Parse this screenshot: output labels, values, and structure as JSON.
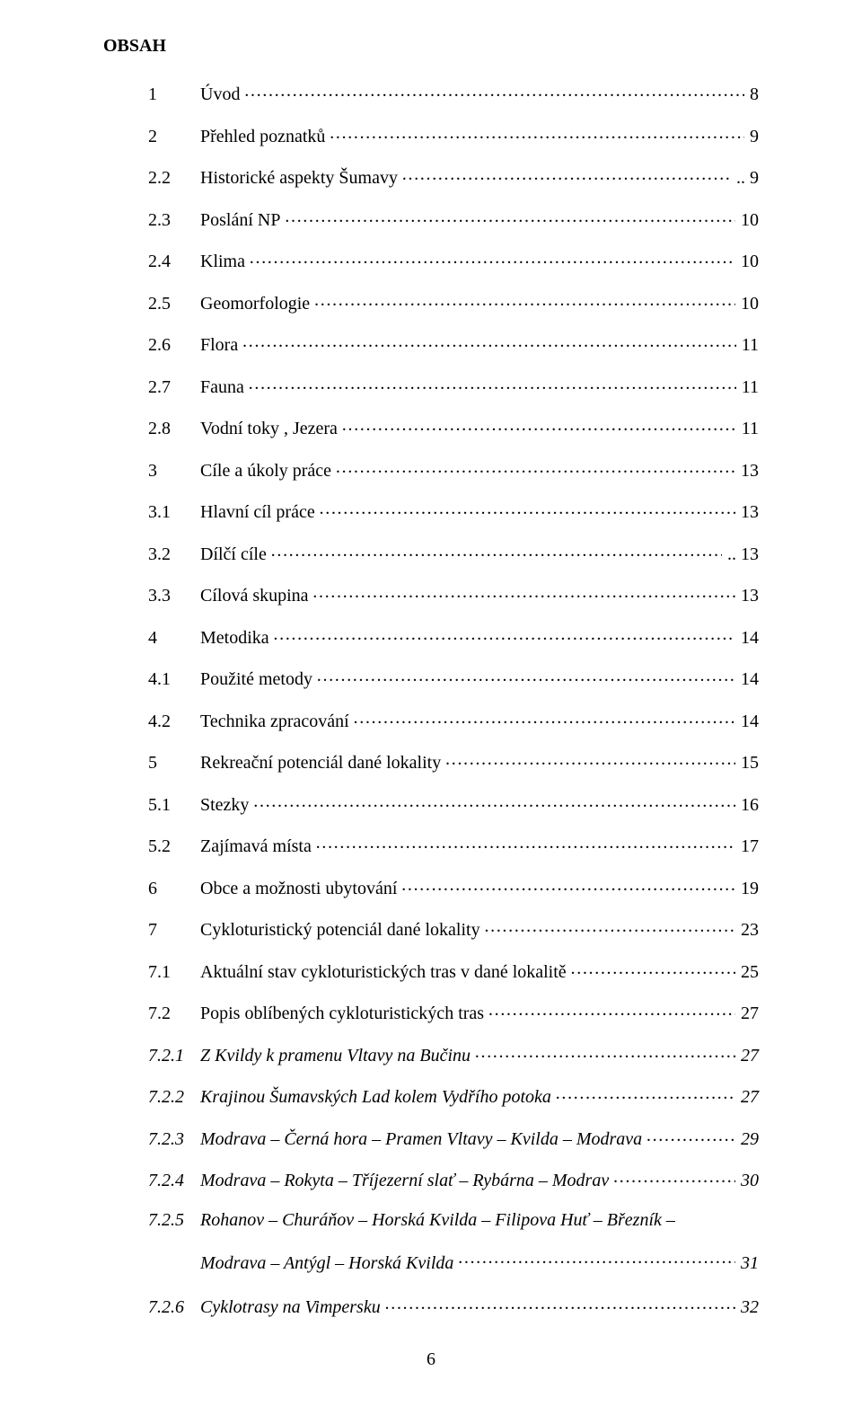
{
  "title": "OBSAH",
  "footer_page_number": "6",
  "entries": [
    {
      "num": "1",
      "label": "Úvod",
      "page": "8",
      "italic": false
    },
    {
      "num": "2",
      "label": "Přehled poznatků",
      "page": "9",
      "italic": false
    },
    {
      "num": "2.2",
      "label": "Historické aspekty Šumavy",
      "page": "9",
      "italic": false,
      "page_prefix": ".."
    },
    {
      "num": "2.3",
      "label": "Poslání NP",
      "page": "10",
      "italic": false
    },
    {
      "num": "2.4",
      "label": "Klima",
      "page": "10",
      "italic": false
    },
    {
      "num": "2.5",
      "label": "Geomorfologie",
      "page": "10",
      "italic": false
    },
    {
      "num": "2.6",
      "label": "Flora",
      "page": "11",
      "italic": false
    },
    {
      "num": "2.7",
      "label": "Fauna",
      "page": "11",
      "italic": false
    },
    {
      "num": "2.8",
      "label": "Vodní toky , Jezera",
      "page": "11",
      "italic": false
    },
    {
      "num": "3",
      "label": "Cíle a úkoly práce",
      "page": "13",
      "italic": false
    },
    {
      "num": "3.1",
      "label": "Hlavní cíl práce",
      "page": "13",
      "italic": false
    },
    {
      "num": "3.2",
      "label": "Dílčí cíle",
      "page": "13",
      "italic": false,
      "page_prefix": ".."
    },
    {
      "num": "3.3",
      "label": "Cílová skupina",
      "page": "13",
      "italic": false
    },
    {
      "num": "4",
      "label": "Metodika",
      "page": "14",
      "italic": false
    },
    {
      "num": "4.1",
      "label": "Použité metody",
      "page": "14",
      "italic": false
    },
    {
      "num": "4.2",
      "label": "Technika zpracování",
      "page": "14",
      "italic": false
    },
    {
      "num": "5",
      "label": "Rekreační potenciál dané lokality",
      "page": "15",
      "italic": false
    },
    {
      "num": "5.1",
      "label": "Stezky",
      "page": "16",
      "italic": false
    },
    {
      "num": "5.2",
      "label": "Zajímavá místa",
      "page": "17",
      "italic": false
    },
    {
      "num": "6",
      "label": "Obce a možnosti ubytování",
      "page": "19",
      "italic": false
    },
    {
      "num": "7",
      "label": "Cykloturistický potenciál dané lokality",
      "page": "23",
      "italic": false
    },
    {
      "num": "7.1",
      "label": "Aktuální stav cykloturistických tras v dané lokalitě",
      "page": "25",
      "italic": false
    },
    {
      "num": "7.2",
      "label": "Popis oblíbených cykloturistických tras",
      "page": "27",
      "italic": false
    },
    {
      "num": "7.2.1",
      "label": "Z Kvildy k pramenu Vltavy na Bučinu",
      "page": "27",
      "italic": true
    },
    {
      "num": "7.2.2",
      "label": "Krajinou Šumavských Lad kolem Vydřího potoka",
      "page": "27",
      "italic": true
    },
    {
      "num": "7.2.3",
      "label": "Modrava – Černá hora – Pramen Vltavy – Kvilda – Modrava",
      "page": "29",
      "italic": true
    },
    {
      "num": "7.2.4",
      "label": "Modrava – Rokyta – Tříjezerní slať – Rybárna – Modrav",
      "page": "30",
      "italic": true
    },
    {
      "num": "7.2.5",
      "label": "Rohanov – Churáňov – Horská Kvilda – Filipova Huť – Březník –",
      "label2": "Modrava – Antýgl – Horská Kvilda",
      "page": "31",
      "italic": true,
      "wrap": true
    },
    {
      "num": "7.2.6",
      "label": "Cyklotrasy na Vimpersku",
      "page": "32",
      "italic": true
    }
  ]
}
